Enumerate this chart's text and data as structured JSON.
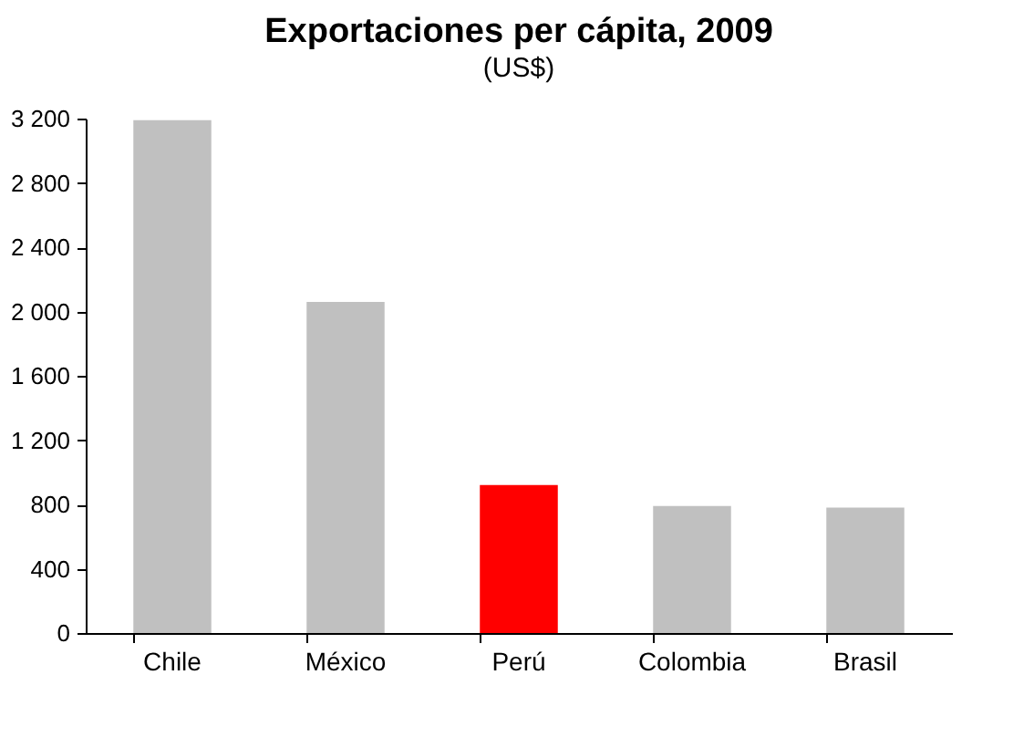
{
  "chart_data": {
    "type": "bar",
    "title": "Exportaciones per cápita, 2009",
    "subtitle": "(US$)",
    "categories": [
      "Chile",
      "México",
      "Perú",
      "Colombia",
      "Brasil"
    ],
    "values": [
      3190,
      2060,
      920,
      790,
      780
    ],
    "colors": [
      "#c0c0c0",
      "#c0c0c0",
      "#ff0000",
      "#c0c0c0",
      "#c0c0c0"
    ],
    "ylim": [
      0,
      3200
    ],
    "yticks": [
      0,
      400,
      800,
      {
        "value": 1200,
        "label": "1 200"
      },
      {
        "value": 1600,
        "label": "1 600"
      },
      {
        "value": 2000,
        "label": "2 000"
      },
      {
        "value": 2400,
        "label": "2 400"
      },
      {
        "value": 2800,
        "label": "2 800"
      },
      {
        "value": 3200,
        "label": "3 200"
      }
    ],
    "grid": false
  }
}
